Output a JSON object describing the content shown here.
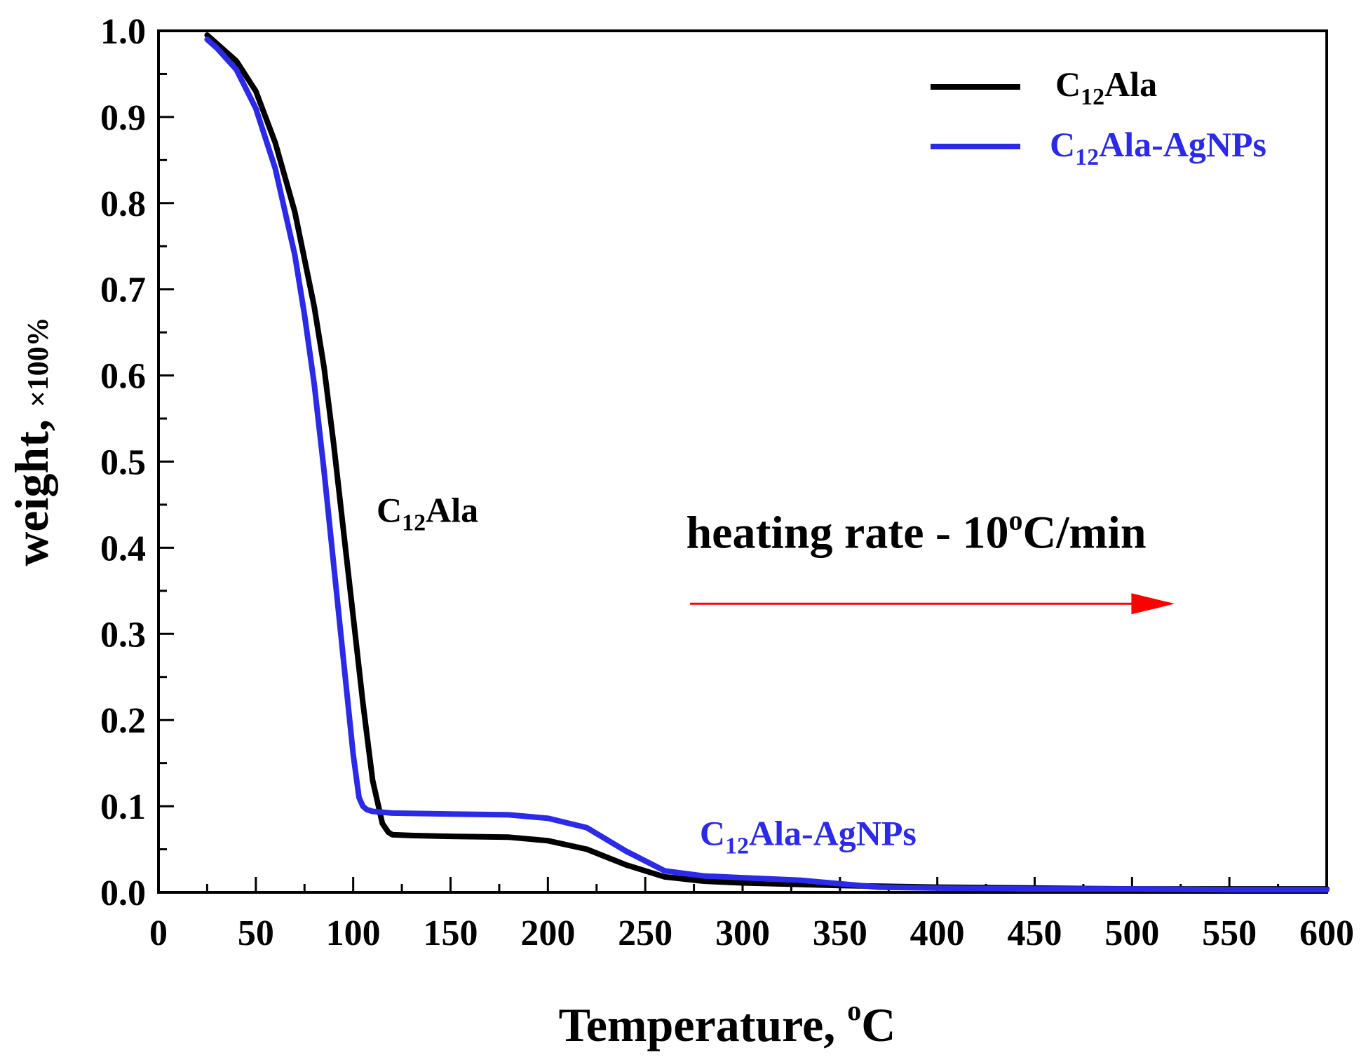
{
  "chart_data": {
    "type": "line",
    "title": "",
    "xlabel_main": "Temperature, ",
    "xlabel_sup": "o",
    "xlabel_end": "C",
    "ylabel_main": "weight, ",
    "ylabel_small": "×100%",
    "xlim": [
      0,
      600
    ],
    "ylim": [
      0.0,
      1.0
    ],
    "x_ticks": [
      "0",
      "50",
      "100",
      "150",
      "200",
      "250",
      "300",
      "350",
      "400",
      "450",
      "500",
      "550",
      "600"
    ],
    "y_ticks": [
      "0.0",
      "0.1",
      "0.2",
      "0.3",
      "0.4",
      "0.5",
      "0.6",
      "0.7",
      "0.8",
      "0.9",
      "1.0"
    ],
    "legend_position": "top-right",
    "series": [
      {
        "name": "C12Ala",
        "label_main": "C",
        "label_sub": "12",
        "label_end": "Ala",
        "color": "#000000",
        "x": [
          25,
          30,
          40,
          50,
          60,
          70,
          80,
          85,
          90,
          95,
          100,
          105,
          110,
          115,
          118,
          120,
          130,
          150,
          180,
          200,
          220,
          240,
          260,
          280,
          300,
          350,
          400,
          450,
          500,
          550,
          600
        ],
        "y": [
          0.995,
          0.985,
          0.965,
          0.93,
          0.87,
          0.79,
          0.68,
          0.61,
          0.52,
          0.42,
          0.32,
          0.22,
          0.13,
          0.08,
          0.07,
          0.067,
          0.066,
          0.065,
          0.064,
          0.06,
          0.05,
          0.032,
          0.018,
          0.013,
          0.011,
          0.008,
          0.006,
          0.005,
          0.004,
          0.004,
          0.004
        ]
      },
      {
        "name": "C12Ala-AgNPs",
        "label_main": "C",
        "label_sub": "12",
        "label_end": "Ala-AgNPs",
        "color": "#2a2ae8",
        "x": [
          25,
          30,
          40,
          50,
          60,
          70,
          75,
          80,
          85,
          90,
          95,
          100,
          103,
          105,
          107,
          110,
          120,
          150,
          180,
          200,
          220,
          240,
          260,
          280,
          300,
          330,
          350,
          370,
          400,
          450,
          500,
          550,
          600
        ],
        "y": [
          0.99,
          0.98,
          0.955,
          0.91,
          0.84,
          0.74,
          0.67,
          0.59,
          0.49,
          0.38,
          0.27,
          0.16,
          0.11,
          0.1,
          0.096,
          0.094,
          0.092,
          0.091,
          0.09,
          0.086,
          0.075,
          0.048,
          0.025,
          0.019,
          0.017,
          0.014,
          0.01,
          0.006,
          0.005,
          0.004,
          0.004,
          0.003,
          0.003
        ]
      }
    ],
    "annotations": [
      {
        "id": "curve-label-c12ala",
        "main": "C",
        "sub": "12",
        "end": "Ala",
        "color": "#000000",
        "x": 112,
        "y": 0.43
      },
      {
        "id": "curve-label-agnps",
        "main": "C",
        "sub": "12",
        "end": "Ala-AgNPs",
        "color": "#2a2ae8",
        "x": 278,
        "y": 0.055
      }
    ],
    "heating": {
      "text_main": "heating rate - 10",
      "text_sup": "o",
      "text_end": "C/min",
      "arrow_color": "#ff0000",
      "x_start": 273,
      "x_end": 522,
      "y": 0.335,
      "text_x": 271,
      "text_y": 0.4
    }
  }
}
